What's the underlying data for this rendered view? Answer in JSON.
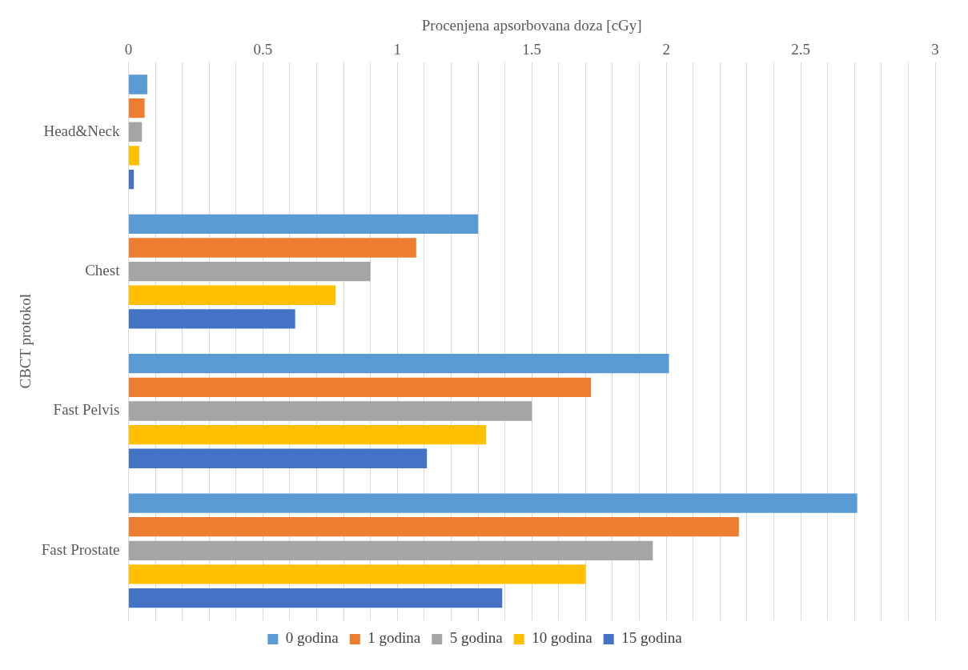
{
  "chart_data": {
    "type": "bar",
    "orientation": "horizontal",
    "xlabel": "Procenjena apsorbovana doza [cGy]",
    "ylabel": "CBCT protokol",
    "categories": [
      "Head&Neck",
      "Chest",
      "Fast Pelvis",
      "Fast Prostate"
    ],
    "series": [
      {
        "name": "0 godina",
        "color": "#5b9bd5",
        "values": [
          0.07,
          1.3,
          2.01,
          2.71
        ]
      },
      {
        "name": "1 godina",
        "color": "#ed7d31",
        "values": [
          0.06,
          1.07,
          1.72,
          2.27
        ]
      },
      {
        "name": "5 godina",
        "color": "#a5a5a5",
        "values": [
          0.05,
          0.9,
          1.5,
          1.95
        ]
      },
      {
        "name": "10 godina",
        "color": "#ffc000",
        "values": [
          0.04,
          0.77,
          1.33,
          1.7
        ]
      },
      {
        "name": "15 godina",
        "color": "#4472c4",
        "values": [
          0.02,
          0.62,
          1.11,
          1.39
        ]
      }
    ],
    "xlim": [
      0,
      3
    ],
    "xticks": [
      0,
      {
        "value": 0.1,
        "label": null
      },
      {
        "value": 0.2,
        "label": null
      },
      {
        "value": 0.3,
        "label": null
      },
      {
        "value": 0.4,
        "label": null
      },
      0.5,
      {
        "value": 0.6,
        "label": null
      },
      {
        "value": 0.7,
        "label": null
      },
      {
        "value": 0.8,
        "label": null
      },
      {
        "value": 0.9,
        "label": null
      },
      1,
      {
        "value": 1.1,
        "label": null
      },
      {
        "value": 1.2,
        "label": null
      },
      {
        "value": 1.3,
        "label": null
      },
      {
        "value": 1.4,
        "label": null
      },
      1.5,
      {
        "value": 1.6,
        "label": null
      },
      {
        "value": 1.7,
        "label": null
      },
      {
        "value": 1.8,
        "label": null
      },
      {
        "value": 1.9,
        "label": null
      },
      2,
      {
        "value": 2.1,
        "label": null
      },
      {
        "value": 2.2,
        "label": null
      },
      {
        "value": 2.3,
        "label": null
      },
      {
        "value": 2.4,
        "label": null
      },
      2.5,
      {
        "value": 2.6,
        "label": null
      },
      {
        "value": 2.7,
        "label": null
      },
      {
        "value": 2.8,
        "label": null
      },
      {
        "value": 2.9,
        "label": null
      },
      3
    ],
    "grid": "x",
    "legend": "bottom"
  }
}
